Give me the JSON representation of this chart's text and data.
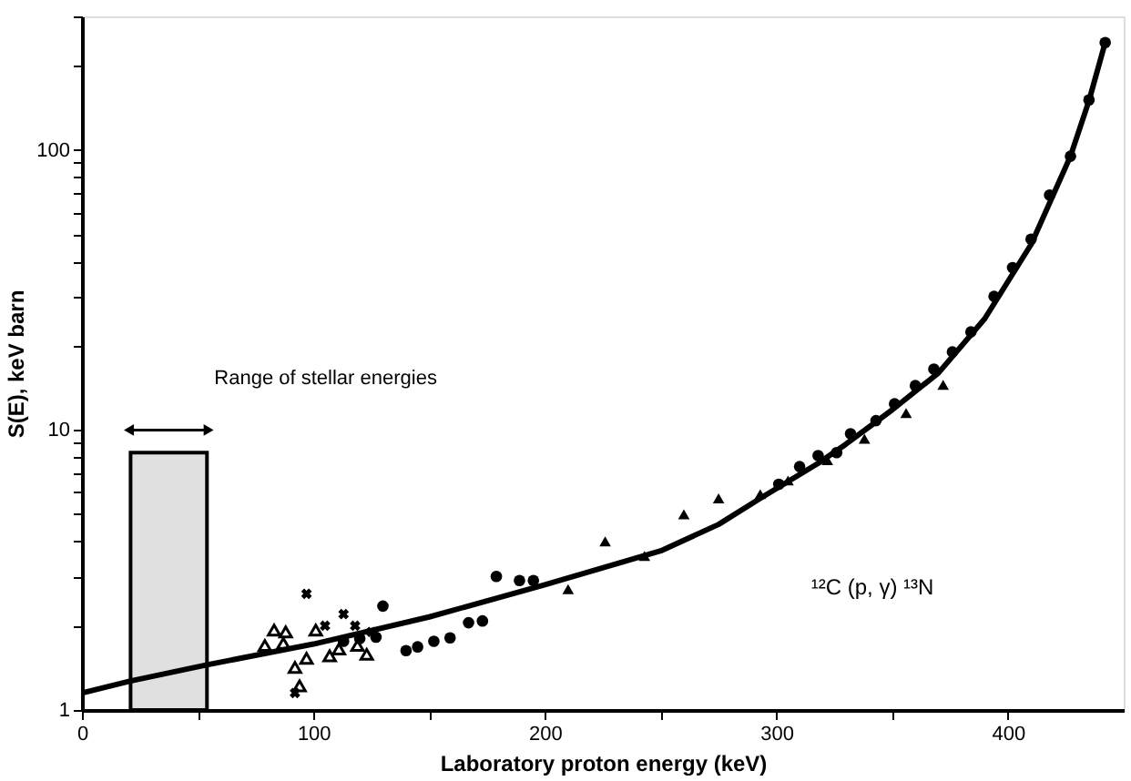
{
  "chart_data": {
    "type": "scatter",
    "xlabel": "Laboratory proton energy (keV)",
    "ylabel": "S(E), keV barn",
    "annotations": [
      "¹²C (p, γ) ¹³N"
    ],
    "xlim": [
      0,
      450
    ],
    "xticks": [
      0,
      {
        "value": 50,
        "label": null
      },
      100,
      {
        "value": 150,
        "label": null
      },
      200,
      {
        "value": 250,
        "label": null
      },
      300,
      {
        "value": 350,
        "label": null
      },
      400
    ],
    "ylim": [
      1,
      300
    ],
    "yticks": [
      1,
      {
        "value": 2,
        "label": null
      },
      {
        "value": 3,
        "label": null
      },
      {
        "value": 4,
        "label": null
      },
      {
        "value": 5,
        "label": null
      },
      {
        "value": 6,
        "label": null
      },
      {
        "value": 7,
        "label": null
      },
      {
        "value": 8,
        "label": null
      },
      {
        "value": 9,
        "label": null
      },
      10,
      {
        "value": 20,
        "label": null
      },
      {
        "value": 30,
        "label": null
      },
      {
        "value": 40,
        "label": null
      },
      {
        "value": 50,
        "label": null
      },
      {
        "value": 60,
        "label": null
      },
      {
        "value": 70,
        "label": null
      },
      {
        "value": 80,
        "label": null
      },
      {
        "value": 90,
        "label": null
      },
      100,
      {
        "value": 200,
        "label": null
      },
      {
        "value": 300,
        "label": null
      }
    ],
    "log": "y",
    "grid": false,
    "bands": [
      {
        "axis": "x",
        "from": 21,
        "to": 54,
        "label": "Range of stellar energies",
        "color": "#000000"
      }
    ],
    "series": [
      {
        "type": "line",
        "color": "#000000",
        "marker": "none",
        "line_style": "solid",
        "x": [
          0,
          21,
          54,
          100,
          150,
          200,
          250,
          275,
          293,
          318,
          330,
          350,
          370,
          390,
          410,
          427,
          435,
          442
        ],
        "values": [
          1.15,
          1.27,
          1.45,
          1.72,
          2.15,
          2.8,
          3.7,
          4.6,
          5.7,
          7.6,
          8.9,
          11.8,
          16,
          25,
          46,
          95,
          150,
          242
        ]
      },
      {
        "color": "#000000",
        "marker": "circle",
        "x": [
          113,
          120,
          127,
          130,
          140,
          145,
          152,
          159,
          167,
          173,
          179,
          189,
          195,
          301,
          310,
          318,
          326,
          332,
          343,
          351,
          360,
          368,
          376,
          384,
          394,
          402,
          410,
          418,
          427,
          435,
          442
        ],
        "values": [
          1.76,
          1.8,
          1.82,
          2.35,
          1.63,
          1.68,
          1.76,
          1.81,
          2.05,
          2.08,
          3.0,
          2.9,
          2.9,
          6.4,
          7.4,
          8.1,
          8.3,
          9.7,
          10.8,
          12.4,
          14.4,
          16.5,
          19,
          22.4,
          30,
          38,
          48,
          69,
          95,
          151,
          242
        ]
      },
      {
        "color": "#000000",
        "marker": "triangle",
        "x": [
          210,
          226,
          243,
          260,
          275,
          293,
          305,
          322,
          338,
          356,
          372
        ],
        "values": [
          2.7,
          4.0,
          3.55,
          5.0,
          5.7,
          5.9,
          6.6,
          7.8,
          9.3,
          11.5,
          14.5
        ]
      },
      {
        "color": "#000000",
        "marker": "triangle",
        "x": [
          79,
          83,
          87,
          88,
          92,
          94,
          97,
          101,
          107,
          111,
          119,
          123
        ],
        "values": [
          1.7,
          1.93,
          1.73,
          1.9,
          1.42,
          1.22,
          1.53,
          1.93,
          1.56,
          1.65,
          1.7,
          1.58
        ]
      },
      {
        "color": "#000000",
        "marker": "cross",
        "x": [
          92,
          97,
          105,
          113,
          118,
          125
        ],
        "values": [
          1.15,
          2.6,
          2.0,
          2.2,
          2.0,
          1.9
        ]
      }
    ]
  }
}
